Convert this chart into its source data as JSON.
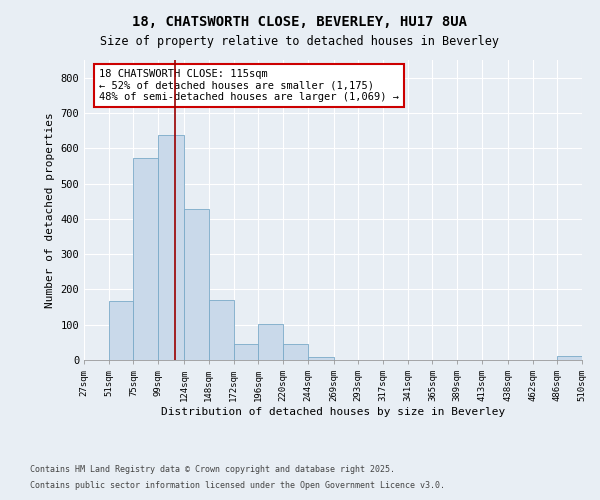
{
  "title": "18, CHATSWORTH CLOSE, BEVERLEY, HU17 8UA",
  "subtitle": "Size of property relative to detached houses in Beverley",
  "xlabel": "Distribution of detached houses by size in Beverley",
  "ylabel": "Number of detached properties",
  "bar_edges": [
    27,
    51,
    75,
    99,
    124,
    148,
    172,
    196,
    220,
    244,
    269,
    293,
    317,
    341,
    365,
    389,
    413,
    438,
    462,
    486,
    510
  ],
  "bar_heights": [
    0,
    167,
    572,
    638,
    428,
    169,
    45,
    101,
    44,
    8,
    0,
    0,
    0,
    0,
    0,
    0,
    0,
    0,
    0,
    11
  ],
  "bar_color": "#c9d9ea",
  "bar_edge_color": "#7aaac8",
  "property_size": 115,
  "vline_color": "#990000",
  "annotation_text": "18 CHATSWORTH CLOSE: 115sqm\n← 52% of detached houses are smaller (1,175)\n48% of semi-detached houses are larger (1,069) →",
  "annotation_box_color": "#ffffff",
  "annotation_box_edge": "#cc0000",
  "ylim": [
    0,
    850
  ],
  "yticks": [
    0,
    100,
    200,
    300,
    400,
    500,
    600,
    700,
    800
  ],
  "footnote1": "Contains HM Land Registry data © Crown copyright and database right 2025.",
  "footnote2": "Contains public sector information licensed under the Open Government Licence v3.0.",
  "bg_color": "#e8eef4",
  "plot_bg_color": "#e8eef4",
  "grid_color": "#ffffff"
}
